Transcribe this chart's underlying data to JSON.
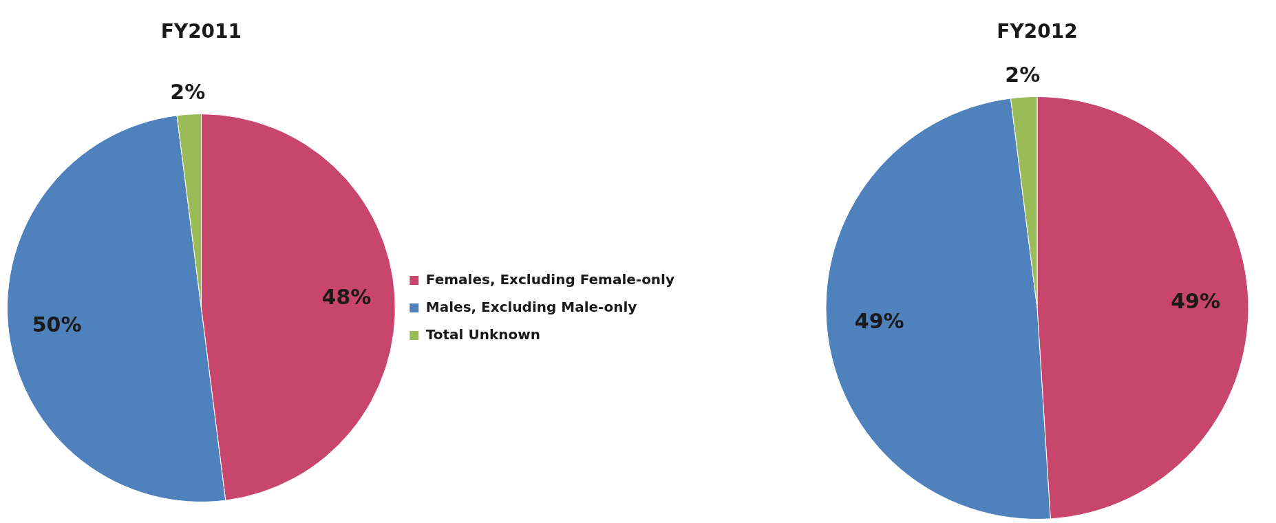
{
  "chart_data": [
    {
      "type": "pie",
      "title": "FY2011",
      "categories": [
        "Females, Excluding Female-only",
        "Males, Excluding Male-only",
        "Total Unknown"
      ],
      "values": [
        48,
        50,
        2
      ],
      "value_labels": [
        "48%",
        "50%",
        "2%"
      ],
      "colors": [
        "#c8466c",
        "#4f81bd",
        "#9bbb59"
      ],
      "legend": "right"
    },
    {
      "type": "pie",
      "title": "FY2012",
      "categories": [
        null,
        null,
        null
      ],
      "values": [
        49,
        49,
        2
      ],
      "value_labels": [
        "49%",
        "49%",
        "2%"
      ],
      "colors": [
        "#c8466c",
        "#4f81bd",
        "#9bbb59"
      ]
    }
  ]
}
